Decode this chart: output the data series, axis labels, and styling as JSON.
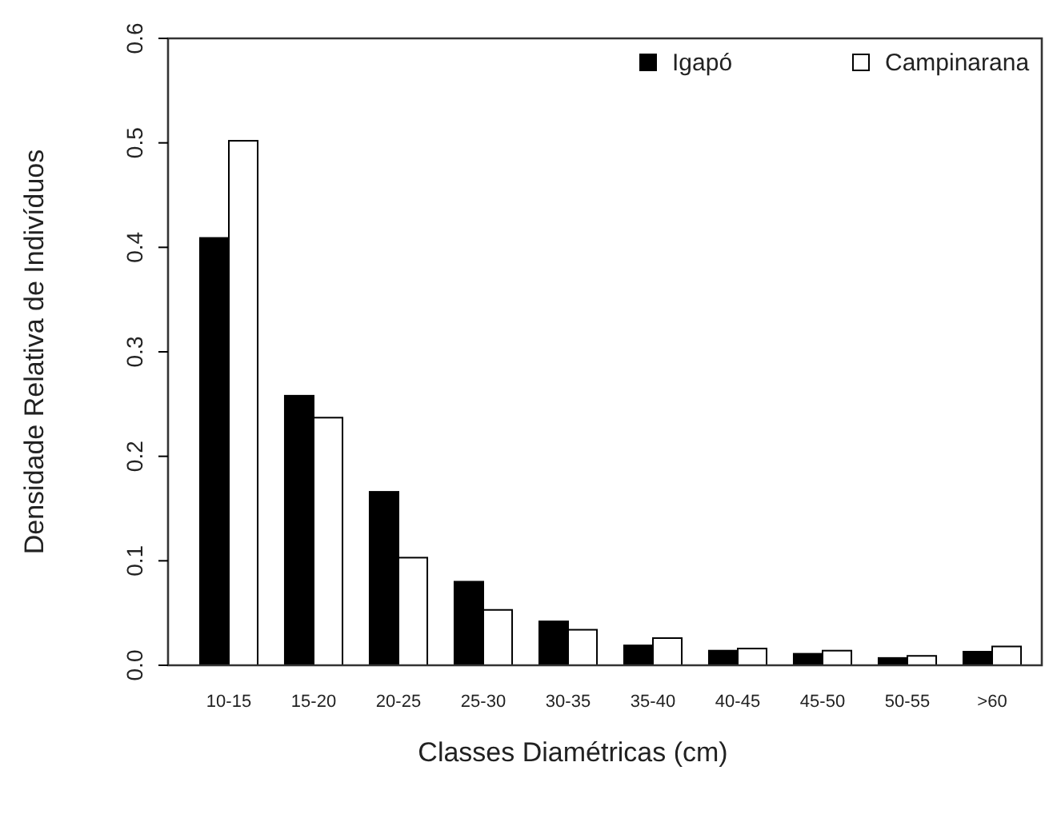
{
  "chart_data": {
    "type": "bar",
    "xlabel": "Classes Diamétricas (cm)",
    "ylabel": "Densidade Relativa de Indivíduos",
    "categories": [
      "10-15",
      "15-20",
      "20-25",
      "25-30",
      "30-35",
      "35-40",
      "40-45",
      "45-50",
      "50-55",
      ">60"
    ],
    "series": [
      {
        "name": "Igapó",
        "color": "#000000",
        "values": [
          0.409,
          0.258,
          0.166,
          0.08,
          0.042,
          0.019,
          0.014,
          0.011,
          0.007,
          0.013
        ]
      },
      {
        "name": "Campinarana",
        "color": "#ffffff",
        "values": [
          0.502,
          0.237,
          0.103,
          0.053,
          0.034,
          0.026,
          0.016,
          0.014,
          0.009,
          0.018
        ]
      }
    ],
    "ylim": [
      0,
      0.6
    ],
    "yticks": [
      {
        "value": 0,
        "label": "0.0"
      },
      0.1,
      0.2,
      0.3,
      0.4,
      0.5,
      0.6
    ],
    "grid": false,
    "legend": "top right"
  }
}
